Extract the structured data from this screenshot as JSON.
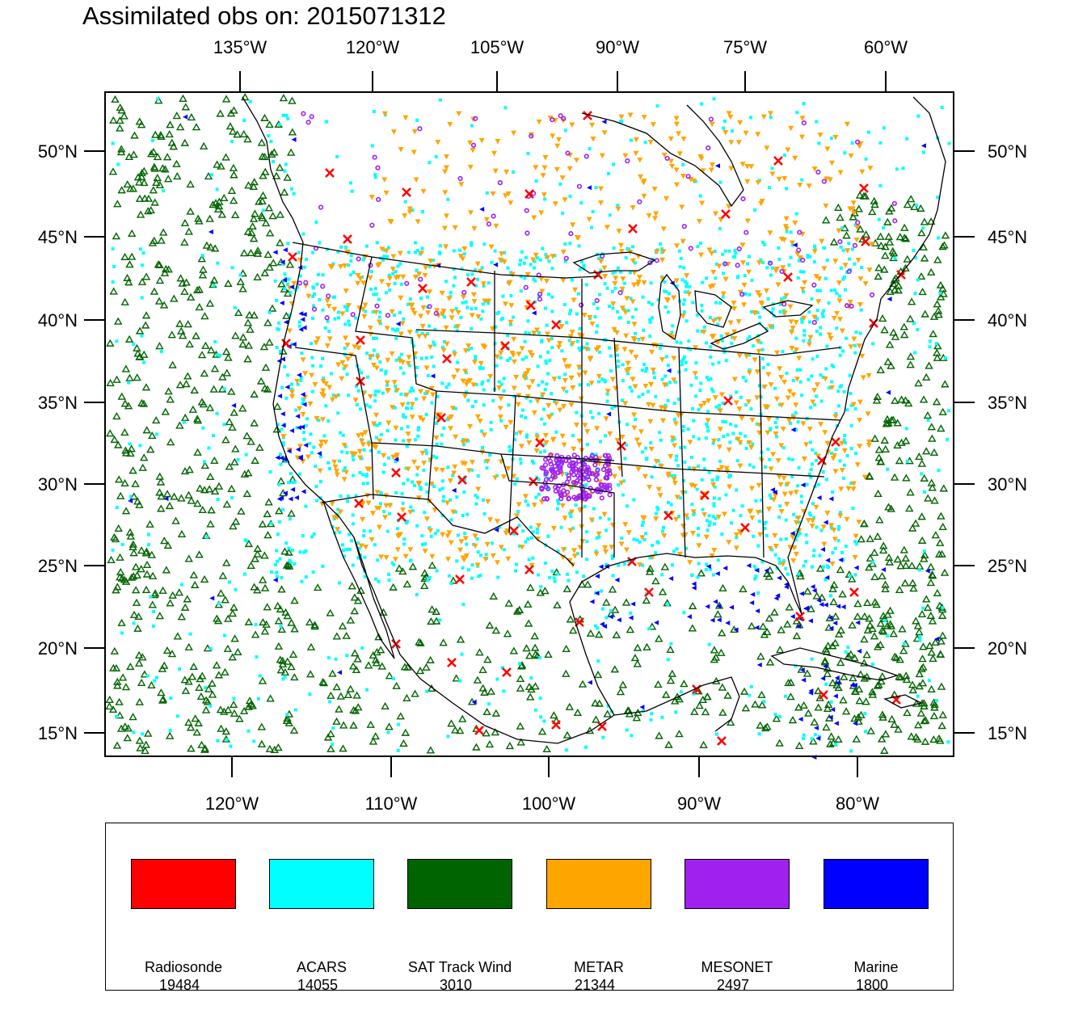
{
  "title": "Assimilated obs on: 2015071312",
  "top_axis": {
    "labels": [
      "135°W",
      "120°W",
      "105°W",
      "90°W",
      "75°W",
      "60°W"
    ]
  },
  "bottom_axis": {
    "labels": [
      "120°W",
      "110°W",
      "100°W",
      "90°W",
      "80°W"
    ]
  },
  "left_axis": {
    "labels": [
      "50°N",
      "45°N",
      "40°N",
      "35°N",
      "30°N",
      "25°N",
      "20°N",
      "15°N"
    ]
  },
  "right_axis": {
    "labels": [
      "50°N",
      "45°N",
      "40°N",
      "35°N",
      "30°N",
      "25°N",
      "20°N",
      "15°N"
    ]
  },
  "legend": [
    {
      "name": "Radiosonde",
      "count": "19484",
      "color": "#ff0000"
    },
    {
      "name": "ACARS",
      "count": "14055",
      "color": "#00ffff"
    },
    {
      "name": "SAT Track Wind",
      "count": "3010",
      "color": "#006400"
    },
    {
      "name": "METAR",
      "count": "21344",
      "color": "#ffa500"
    },
    {
      "name": "MESONET",
      "count": "2497",
      "color": "#a020f0"
    },
    {
      "name": "Marine",
      "count": "1800",
      "color": "#0000ff"
    }
  ]
}
